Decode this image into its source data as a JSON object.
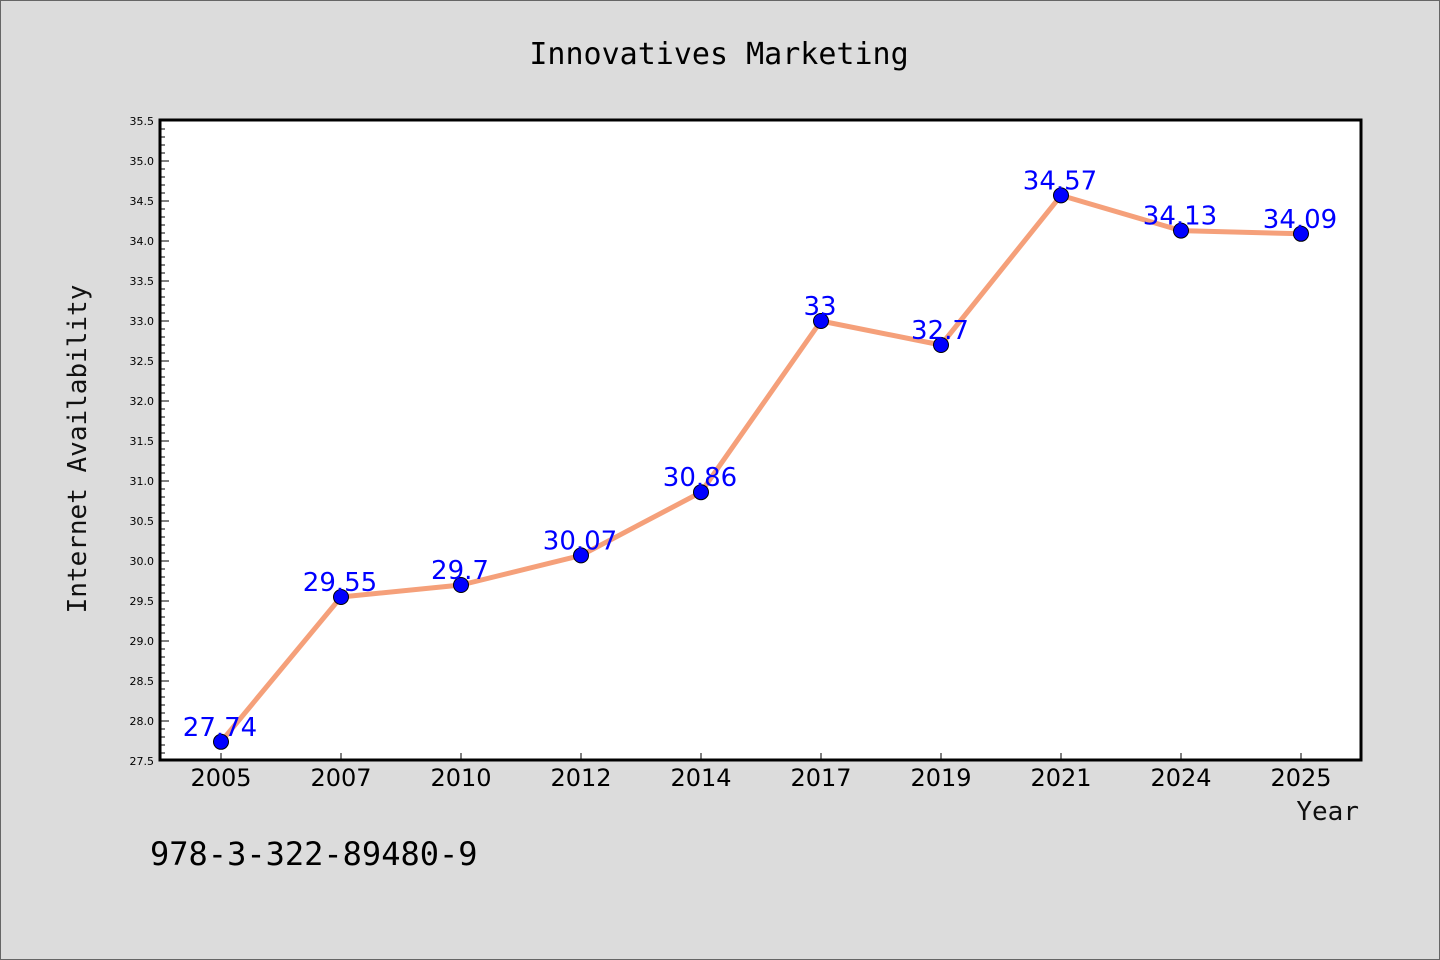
{
  "chart_data": {
    "type": "line",
    "title": "Innovatives Marketing",
    "xlabel": "Year",
    "ylabel": "Internet Availability",
    "categories": [
      "2005",
      "2007",
      "2010",
      "2012",
      "2014",
      "2017",
      "2019",
      "2021",
      "2024",
      "2025"
    ],
    "values": [
      27.74,
      29.55,
      29.7,
      30.07,
      30.86,
      33,
      32.7,
      34.57,
      34.13,
      34.09
    ],
    "data_labels": [
      "27.74",
      "29.55",
      "29.7",
      "30.07",
      "30.86",
      "33",
      "32.7",
      "34.57",
      "34.13",
      "34.09"
    ],
    "ylim": [
      27.5,
      35.5
    ],
    "yticks": [
      "27.5",
      "28.0",
      "28.5",
      "29.0",
      "29.5",
      "30.0",
      "30.5",
      "31.0",
      "31.5",
      "32.0",
      "32.5",
      "33.0",
      "33.5",
      "34.0",
      "34.5",
      "35.0",
      "35.5"
    ],
    "grid": false,
    "line_color": "#f5a07a",
    "marker_color": "#0000ff",
    "label_color": "#0000ff"
  },
  "footer": {
    "isbn": "978-3-322-89480-9"
  }
}
